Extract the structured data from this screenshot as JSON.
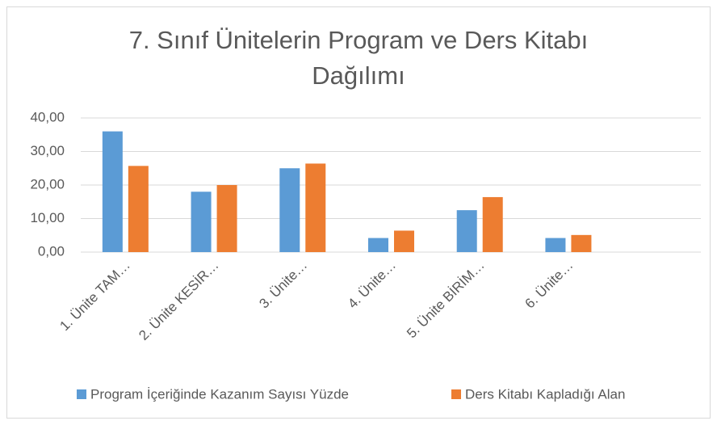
{
  "chart_data": {
    "type": "bar",
    "title": "7. Sınıf Ünitelerin Program ve Ders Kitabı Dağılımı",
    "categories": [
      "1. Ünite TAM…",
      "2. Ünite KESİR…",
      "3. Ünite…",
      "4. Ünite…",
      "5. Ünite BİRİM…",
      "6. Ünite…",
      null
    ],
    "series": [
      {
        "name": "Program İçeriğinde Kazanım Sayısı Yüzde",
        "color": "#5b9bd5",
        "values": [
          36.0,
          18.0,
          25.0,
          4.2,
          12.5,
          4.2,
          null
        ]
      },
      {
        "name": "Ders Kitabı Kapladığı Alan",
        "color": "#ed7d31",
        "values": [
          25.7,
          20.0,
          26.4,
          6.4,
          16.4,
          5.1,
          null
        ]
      }
    ],
    "ylim": [
      0,
      40
    ],
    "yticks": [
      {
        "value": 0,
        "label": "0,00"
      },
      {
        "value": 10,
        "label": "10,00"
      },
      {
        "value": 20,
        "label": "20,00"
      },
      {
        "value": 30,
        "label": "30,00"
      },
      {
        "value": 40,
        "label": "40,00"
      }
    ],
    "grid": true,
    "legend": "bottom"
  }
}
